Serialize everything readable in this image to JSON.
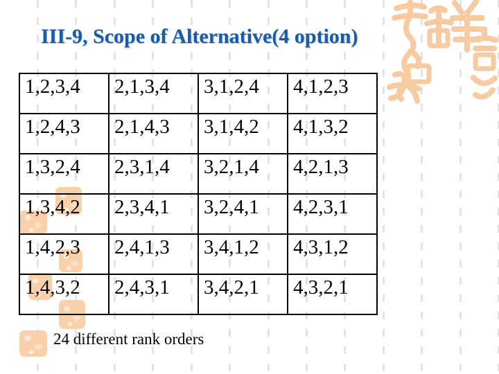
{
  "slide": {
    "title": "III-9, Scope of Alternative(4 option)",
    "footnote": "24 different rank orders"
  },
  "table": {
    "rows": [
      [
        "1,2,3,4",
        "2,1,3,4",
        "3,1,2,4",
        "4,1,2,3"
      ],
      [
        "1,2,4,3",
        "2,1,4,3",
        "3,1,4,2",
        "4,1,3,2"
      ],
      [
        "1,3,2,4",
        "2,3,1,4",
        "3,2,1,4",
        "4,2,1,3"
      ],
      [
        "1,3,4,2",
        "2,3,4,1",
        "3,2,4,1",
        "4,2,3,1"
      ],
      [
        "1,4,2,3",
        "2,4,1,3",
        "3,4,1,2",
        "4,3,1,2"
      ],
      [
        "1,4,3,2",
        "2,4,3,1",
        "3,4,2,1",
        "4,3,2,1"
      ]
    ]
  },
  "icons": {
    "seal": "chinese-seal-calligraphy-icon",
    "stamp": "orange-stamp-icon"
  },
  "colors": {
    "background": "#ffffff",
    "title_blue": "#175cab",
    "seal_orange": "#f7cba1",
    "stamp_orange": "#f8d0a9",
    "dash_gray": "#e1e4e7",
    "table_border": "#000000",
    "text_black": "#000000"
  }
}
